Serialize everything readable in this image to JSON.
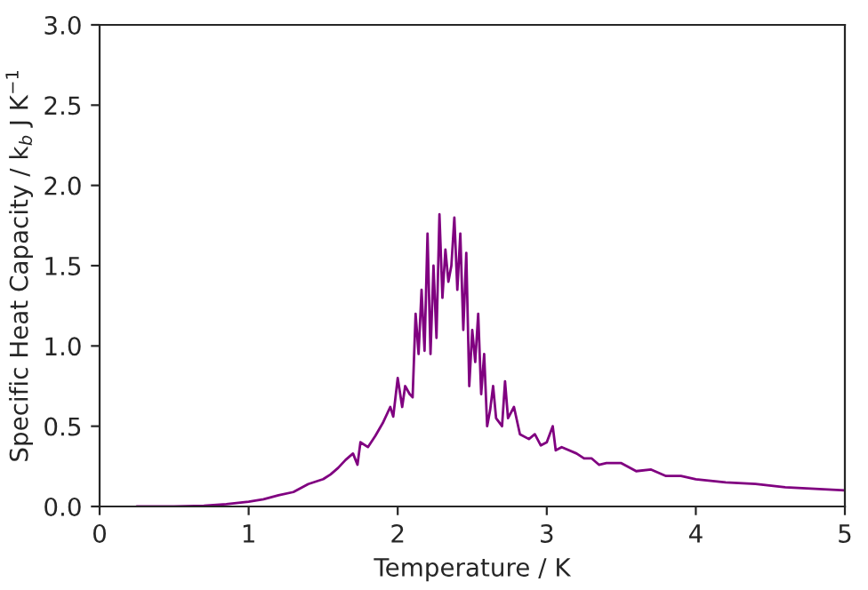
{
  "chart_data": {
    "type": "line",
    "xlabel": "Temperature / K",
    "ylabel": "Specific Heat Capacity / k$_{b}$ J K$^{−1}$",
    "series": [
      {
        "color": "#800080",
        "x": [
          0.25,
          0.5,
          0.7,
          0.85,
          1.0,
          1.1,
          1.2,
          1.3,
          1.4,
          1.5,
          1.55,
          1.6,
          1.65,
          1.7,
          1.73,
          1.75,
          1.8,
          1.85,
          1.9,
          1.95,
          1.97,
          2.0,
          2.03,
          2.05,
          2.08,
          2.1,
          2.12,
          2.14,
          2.16,
          2.18,
          2.2,
          2.22,
          2.24,
          2.26,
          2.28,
          2.3,
          2.32,
          2.34,
          2.36,
          2.38,
          2.4,
          2.42,
          2.44,
          2.46,
          2.48,
          2.5,
          2.52,
          2.54,
          2.56,
          2.58,
          2.6,
          2.62,
          2.64,
          2.66,
          2.7,
          2.72,
          2.74,
          2.78,
          2.82,
          2.88,
          2.92,
          2.96,
          3.0,
          3.04,
          3.06,
          3.1,
          3.2,
          3.25,
          3.3,
          3.35,
          3.4,
          3.5,
          3.6,
          3.7,
          3.8,
          3.9,
          4.0,
          4.2,
          4.4,
          4.6,
          4.8,
          5.0
        ],
        "values": [
          0,
          0,
          0.005,
          0.015,
          0.03,
          0.045,
          0.07,
          0.09,
          0.14,
          0.17,
          0.2,
          0.24,
          0.29,
          0.33,
          0.26,
          0.4,
          0.37,
          0.44,
          0.52,
          0.62,
          0.56,
          0.8,
          0.62,
          0.75,
          0.7,
          0.68,
          1.2,
          0.95,
          1.35,
          0.97,
          1.7,
          0.95,
          1.5,
          1.05,
          1.82,
          1.3,
          1.6,
          1.4,
          1.5,
          1.8,
          1.35,
          1.7,
          1.1,
          1.58,
          0.75,
          1.1,
          0.9,
          1.2,
          0.7,
          0.95,
          0.5,
          0.6,
          0.75,
          0.55,
          0.5,
          0.78,
          0.55,
          0.62,
          0.45,
          0.42,
          0.45,
          0.38,
          0.4,
          0.5,
          0.35,
          0.37,
          0.33,
          0.3,
          0.3,
          0.26,
          0.27,
          0.27,
          0.22,
          0.23,
          0.19,
          0.19,
          0.17,
          0.15,
          0.14,
          0.12,
          0.11,
          0.1
        ]
      }
    ],
    "xlim": [
      0,
      5
    ],
    "xticks": [
      0,
      1,
      2,
      3,
      4,
      5
    ],
    "ylim": [
      0,
      3.0
    ],
    "yticks": [
      {
        "value": 0,
        "label": "0.0"
      },
      {
        "value": 0.5,
        "label": "0.5"
      },
      {
        "value": 1.0,
        "label": "1.0"
      },
      {
        "value": 1.5,
        "label": "1.5"
      },
      {
        "value": 2.0,
        "label": "2.0"
      },
      {
        "value": 2.5,
        "label": "2.5"
      },
      {
        "value": 3.0,
        "label": "3.0"
      }
    ],
    "grid": false
  }
}
